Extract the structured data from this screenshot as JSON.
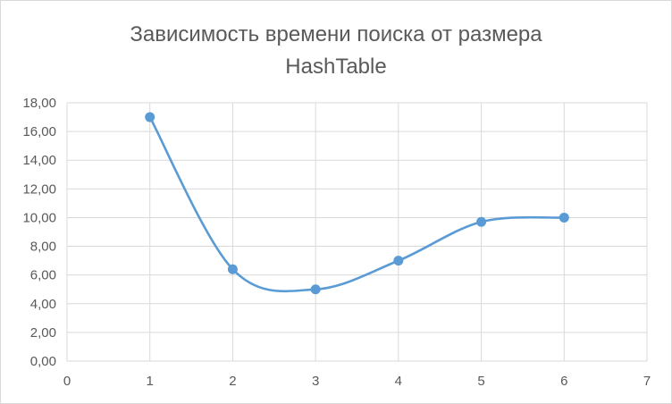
{
  "chart_data": {
    "type": "line",
    "title_lines": [
      "Зависимость времени поиска от размера",
      "HashTable"
    ],
    "x": [
      1,
      2,
      3,
      4,
      5,
      6
    ],
    "series": [
      {
        "values": [
          17.0,
          6.4,
          5.0,
          7.0,
          9.7,
          10.0
        ]
      }
    ],
    "xlim": [
      0,
      7
    ],
    "ylim": [
      0,
      18
    ],
    "x_ticks": [
      "0",
      "1",
      "2",
      "3",
      "4",
      "5",
      "6",
      "7"
    ],
    "y_ticks": [
      "0,00",
      "2,00",
      "4,00",
      "6,00",
      "8,00",
      "10,00",
      "12,00",
      "14,00",
      "16,00",
      "18,00"
    ],
    "grid": true,
    "smooth": true,
    "legend": "none",
    "colors": {
      "line": "#5b9bd5",
      "marker": "#5b9bd5",
      "grid": "#d9d9d9",
      "text": "#595959"
    }
  }
}
